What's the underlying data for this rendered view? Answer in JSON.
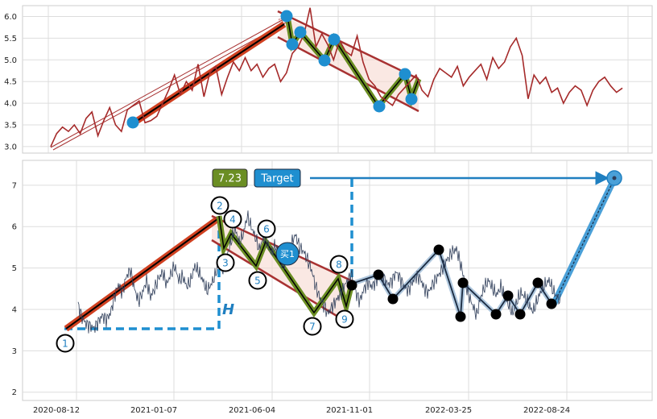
{
  "colors": {
    "top_price": "#a52a2a",
    "bottom_price": "#2f3e5a",
    "blue": "#1f8fd0",
    "olive": "#6b8e23",
    "channel": "#a83232",
    "black": "#000000"
  },
  "chart_data": [
    {
      "type": "line",
      "panel": "top",
      "ylim": [
        2.85,
        6.25
      ],
      "yticks": [
        "3.0",
        "3.5",
        "4.0",
        "4.5",
        "5.0",
        "5.5",
        "6.0"
      ],
      "xlim": [
        0,
        800
      ],
      "series": [
        {
          "values": [
            [
              0,
              3.0
            ],
            [
              8,
              3.3
            ],
            [
              16,
              3.45
            ],
            [
              24,
              3.35
            ],
            [
              32,
              3.5
            ],
            [
              40,
              3.3
            ],
            [
              48,
              3.65
            ],
            [
              56,
              3.8
            ],
            [
              64,
              3.25
            ],
            [
              72,
              3.6
            ],
            [
              80,
              3.9
            ],
            [
              88,
              3.5
            ],
            [
              96,
              3.35
            ],
            [
              104,
              3.85
            ],
            [
              112,
              3.95
            ],
            [
              120,
              4.05
            ],
            [
              128,
              3.55
            ],
            [
              136,
              3.6
            ],
            [
              144,
              3.7
            ],
            [
              152,
              4.0
            ],
            [
              160,
              4.3
            ],
            [
              168,
              4.65
            ],
            [
              176,
              4.2
            ],
            [
              184,
              4.5
            ],
            [
              192,
              4.3
            ],
            [
              200,
              4.9
            ],
            [
              208,
              4.15
            ],
            [
              216,
              4.7
            ],
            [
              224,
              4.85
            ],
            [
              232,
              4.2
            ],
            [
              240,
              4.6
            ],
            [
              248,
              4.95
            ],
            [
              256,
              4.75
            ],
            [
              264,
              5.05
            ],
            [
              272,
              4.75
            ],
            [
              280,
              4.9
            ],
            [
              288,
              4.6
            ],
            [
              296,
              4.8
            ],
            [
              304,
              4.9
            ],
            [
              312,
              4.5
            ],
            [
              320,
              4.7
            ],
            [
              328,
              5.15
            ],
            [
              336,
              5.3
            ],
            [
              344,
              5.6
            ],
            [
              352,
              6.2
            ],
            [
              360,
              5.3
            ],
            [
              368,
              5.6
            ],
            [
              376,
              5.35
            ],
            [
              384,
              5.0
            ],
            [
              392,
              5.45
            ],
            [
              400,
              5.2
            ],
            [
              408,
              5.1
            ],
            [
              416,
              5.55
            ],
            [
              424,
              4.95
            ],
            [
              432,
              4.55
            ],
            [
              440,
              4.4
            ],
            [
              448,
              4.15
            ],
            [
              456,
              4.05
            ],
            [
              464,
              3.95
            ],
            [
              472,
              4.2
            ],
            [
              480,
              4.35
            ],
            [
              488,
              4.5
            ],
            [
              496,
              4.65
            ],
            [
              504,
              4.3
            ],
            [
              512,
              4.15
            ],
            [
              520,
              4.55
            ],
            [
              528,
              4.8
            ],
            [
              536,
              4.7
            ],
            [
              544,
              4.6
            ],
            [
              552,
              4.85
            ],
            [
              560,
              4.4
            ],
            [
              568,
              4.6
            ],
            [
              576,
              4.75
            ],
            [
              584,
              4.9
            ],
            [
              592,
              4.55
            ],
            [
              600,
              5.05
            ],
            [
              608,
              4.8
            ],
            [
              616,
              4.95
            ],
            [
              624,
              5.3
            ],
            [
              632,
              5.5
            ],
            [
              640,
              5.1
            ],
            [
              648,
              4.1
            ],
            [
              656,
              4.65
            ],
            [
              664,
              4.45
            ],
            [
              672,
              4.6
            ],
            [
              680,
              4.25
            ],
            [
              688,
              4.35
            ],
            [
              696,
              4.0
            ],
            [
              704,
              4.25
            ],
            [
              712,
              4.4
            ],
            [
              720,
              4.3
            ],
            [
              728,
              3.95
            ],
            [
              736,
              4.3
            ],
            [
              744,
              4.5
            ],
            [
              752,
              4.6
            ],
            [
              760,
              4.4
            ],
            [
              768,
              4.25
            ],
            [
              776,
              4.35
            ]
          ]
        }
      ]
    },
    {
      "type": "line",
      "panel": "bottom",
      "ylim": [
        1.8,
        7.6
      ],
      "yticks": [
        "2",
        "3",
        "4",
        "5",
        "6",
        "7"
      ],
      "xlim": [
        0,
        800
      ],
      "xticks": [
        "2020-08-12",
        "2021-01-07",
        "2021-06-04",
        "2021-11-01",
        "2022-03-25",
        "2022-08-24"
      ],
      "series": [
        {
          "values": [
            [
              35,
              4.1
            ],
            [
              40,
              3.8
            ],
            [
              45,
              3.65
            ],
            [
              50,
              3.6
            ],
            [
              55,
              3.55
            ],
            [
              60,
              3.7
            ],
            [
              65,
              3.85
            ],
            [
              70,
              3.75
            ],
            [
              75,
              3.9
            ],
            [
              80,
              4.3
            ],
            [
              85,
              4.6
            ],
            [
              90,
              4.4
            ],
            [
              95,
              4.8
            ],
            [
              100,
              4.95
            ],
            [
              105,
              4.5
            ],
            [
              110,
              4.2
            ],
            [
              115,
              4.4
            ],
            [
              120,
              4.7
            ],
            [
              125,
              4.3
            ],
            [
              130,
              4.5
            ],
            [
              135,
              4.75
            ],
            [
              140,
              4.9
            ],
            [
              145,
              4.6
            ],
            [
              150,
              4.85
            ],
            [
              155,
              5.05
            ],
            [
              160,
              4.7
            ],
            [
              165,
              4.8
            ],
            [
              170,
              4.55
            ],
            [
              175,
              4.7
            ],
            [
              180,
              5.05
            ],
            [
              185,
              4.9
            ],
            [
              190,
              4.7
            ],
            [
              195,
              4.45
            ],
            [
              200,
              4.6
            ],
            [
              205,
              4.8
            ],
            [
              210,
              5.2
            ],
            [
              215,
              4.95
            ],
            [
              220,
              5.3
            ],
            [
              225,
              5.65
            ],
            [
              230,
              5.95
            ],
            [
              235,
              5.6
            ],
            [
              240,
              5.8
            ],
            [
              245,
              6.25
            ],
            [
              250,
              6.0
            ],
            [
              255,
              5.75
            ],
            [
              260,
              5.45
            ],
            [
              265,
              5.75
            ],
            [
              270,
              5.6
            ],
            [
              275,
              5.35
            ],
            [
              280,
              5.55
            ],
            [
              285,
              5.3
            ],
            [
              290,
              5.05
            ],
            [
              295,
              5.25
            ],
            [
              300,
              5.6
            ],
            [
              305,
              5.8
            ],
            [
              310,
              5.5
            ],
            [
              315,
              5.4
            ],
            [
              320,
              5.2
            ],
            [
              325,
              4.95
            ],
            [
              330,
              4.55
            ],
            [
              335,
              4.3
            ],
            [
              340,
              4.1
            ],
            [
              345,
              3.9
            ],
            [
              350,
              4.05
            ],
            [
              355,
              4.2
            ],
            [
              360,
              4.35
            ],
            [
              365,
              4.55
            ],
            [
              370,
              4.7
            ],
            [
              375,
              4.85
            ],
            [
              380,
              4.4
            ],
            [
              385,
              4.2
            ],
            [
              390,
              4.5
            ],
            [
              395,
              4.65
            ],
            [
              400,
              4.55
            ],
            [
              405,
              4.7
            ],
            [
              410,
              4.85
            ],
            [
              415,
              4.75
            ],
            [
              420,
              4.6
            ],
            [
              425,
              4.7
            ],
            [
              430,
              4.9
            ],
            [
              435,
              4.75
            ],
            [
              440,
              4.55
            ],
            [
              445,
              4.45
            ],
            [
              450,
              4.65
            ],
            [
              455,
              4.8
            ],
            [
              460,
              4.75
            ],
            [
              465,
              4.5
            ],
            [
              470,
              4.4
            ],
            [
              475,
              4.6
            ],
            [
              480,
              4.75
            ],
            [
              485,
              4.9
            ],
            [
              490,
              5.1
            ],
            [
              495,
              5.25
            ],
            [
              500,
              5.4
            ],
            [
              505,
              5.45
            ],
            [
              510,
              5.1
            ],
            [
              515,
              4.7
            ],
            [
              520,
              4.35
            ],
            [
              525,
              4.1
            ],
            [
              530,
              3.85
            ],
            [
              535,
              4.3
            ],
            [
              540,
              4.55
            ],
            [
              545,
              4.7
            ],
            [
              550,
              4.5
            ],
            [
              555,
              4.35
            ],
            [
              560,
              4.55
            ],
            [
              565,
              4.3
            ],
            [
              570,
              4.1
            ],
            [
              575,
              3.9
            ],
            [
              580,
              4.2
            ],
            [
              585,
              4.4
            ],
            [
              590,
              4.3
            ],
            [
              595,
              4.1
            ],
            [
              600,
              3.95
            ],
            [
              605,
              4.2
            ],
            [
              610,
              4.45
            ],
            [
              615,
              4.6
            ],
            [
              620,
              4.7
            ],
            [
              625,
              4.45
            ],
            [
              630,
              4.3
            ],
            [
              635,
              4.15
            ]
          ]
        }
      ]
    }
  ],
  "annotations": {
    "wave_labels": [
      "1",
      "2",
      "3",
      "4",
      "5",
      "6",
      "7",
      "8",
      "9"
    ],
    "buy_label": "买1",
    "h_label": "H",
    "target_value": "7.23",
    "target_label": "Target"
  }
}
